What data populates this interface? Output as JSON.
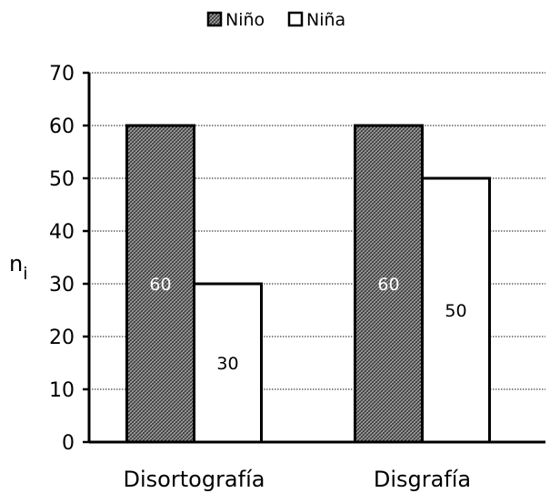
{
  "chart_data": {
    "type": "bar",
    "categories": [
      "Disortografía",
      "Disgrafía"
    ],
    "series": [
      {
        "name": "Niño",
        "values": [
          60,
          60
        ],
        "pattern": "crosshatch-dark"
      },
      {
        "name": "Niña",
        "values": [
          30,
          50
        ],
        "pattern": "white"
      }
    ],
    "data_labels": [
      [
        "60",
        "60"
      ],
      [
        "30",
        "50"
      ]
    ],
    "title": "",
    "xlabel": "",
    "ylabel_main": "n",
    "ylabel_sub": "i",
    "ylim": [
      0,
      70
    ],
    "yticks": [
      0,
      10,
      20,
      30,
      40,
      50,
      60,
      70
    ],
    "grid": true,
    "legend_position": "top-center",
    "colors": {
      "bar_dark": "#555555",
      "bar_light": "#ffffff",
      "axis": "#000000",
      "grid": "#444444"
    }
  }
}
